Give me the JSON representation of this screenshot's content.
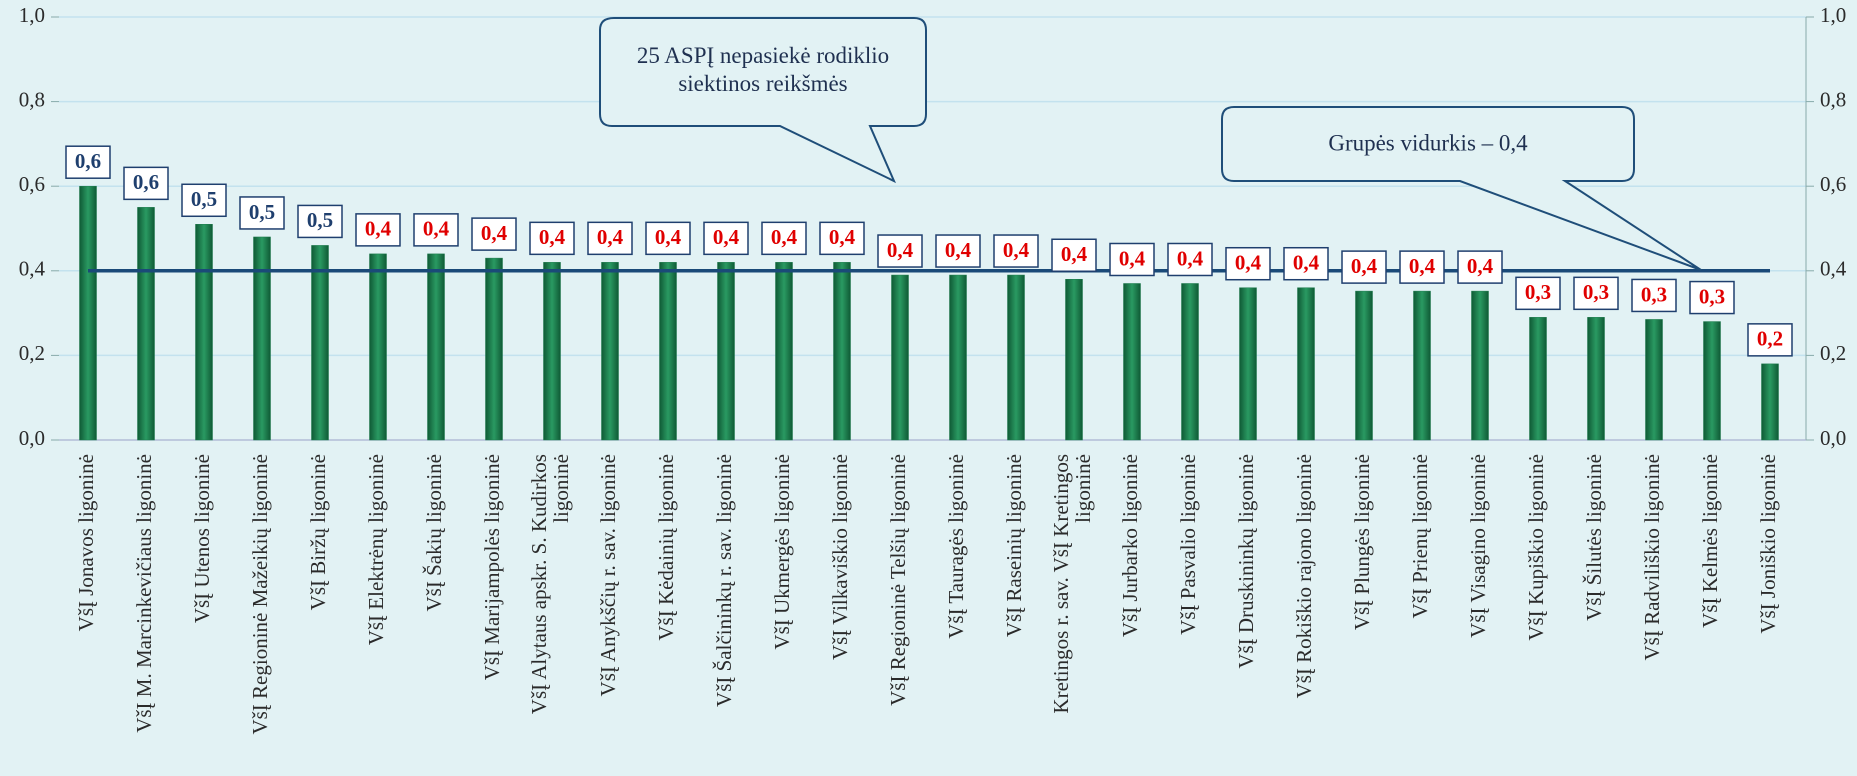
{
  "chart_data": {
    "type": "bar",
    "categories": [
      "VšĮ Jonavos ligoninė",
      "VšĮ M. Marcinkevičiaus ligoninė",
      "VšĮ Utenos ligoninė",
      "VšĮ Regioninė Mažeikių ligoninė",
      "VšĮ Biržų ligoninė",
      "VšĮ Elektrėnų ligoninė",
      "VšĮ Šakių ligoninė",
      "VšĮ Marijampolės ligoninė",
      "VšĮ Alytaus apskr. S. Kudirkos ligoninė",
      "VšĮ Anykščių r. sav. ligoninė",
      "VšĮ Kėdainių ligoninė",
      "VšĮ Šalčininkų r. sav. ligoninė",
      "VšĮ Ukmergės ligoninė",
      "VšĮ Vilkaviškio ligoninė",
      "VšĮ Regioninė Telšių ligoninė",
      "VšĮ Tauragės ligoninė",
      "VšĮ Raseinių ligoninė",
      "Kretingos r. sav. VšĮ Kretingos ligoninė",
      "VšĮ Jurbarko ligoninė",
      "VšĮ Pasvalio ligoninė",
      "VšĮ Druskininkų ligoninė",
      "VšĮ Rokiškio rajono ligoninė",
      "VšĮ Plungės ligoninė",
      "VšĮ Prienų ligoninė",
      "VšĮ Visagino ligoninė",
      "VšĮ Kupiškio ligoninė",
      "VšĮ Šilutės ligoninė",
      "VšĮ Radviliškio ligoninė",
      "VšĮ Kelmės ligoninė",
      "VšĮ Joniškio ligoninė"
    ],
    "values": [
      0.6,
      0.55,
      0.51,
      0.48,
      0.46,
      0.44,
      0.44,
      0.43,
      0.42,
      0.42,
      0.42,
      0.42,
      0.42,
      0.42,
      0.39,
      0.39,
      0.39,
      0.38,
      0.37,
      0.37,
      0.36,
      0.36,
      0.352,
      0.352,
      0.352,
      0.29,
      0.29,
      0.285,
      0.28,
      0.18
    ],
    "value_labels": [
      "0,6",
      "0,6",
      "0,5",
      "0,5",
      "0,5",
      "0,4",
      "0,4",
      "0,4",
      "0,4",
      "0,4",
      "0,4",
      "0,4",
      "0,4",
      "0,4",
      "0,4",
      "0,4",
      "0,4",
      "0,4",
      "0,4",
      "0,4",
      "0,4",
      "0,4",
      "0,4",
      "0,4",
      "0,4",
      "0,3",
      "0,3",
      "0,3",
      "0,3",
      "0,2"
    ],
    "value_label_colors": [
      "#1f3f6e",
      "#1f3f6e",
      "#1f3f6e",
      "#1f3f6e",
      "#1f3f6e",
      "#e00000",
      "#e00000",
      "#e00000",
      "#e00000",
      "#e00000",
      "#e00000",
      "#e00000",
      "#e00000",
      "#e00000",
      "#e00000",
      "#e00000",
      "#e00000",
      "#e00000",
      "#e00000",
      "#e00000",
      "#e00000",
      "#e00000",
      "#e00000",
      "#e00000",
      "#e00000",
      "#e00000",
      "#e00000",
      "#e00000",
      "#e00000",
      "#e00000"
    ],
    "color": "#1d7a4c",
    "ylim": [
      0,
      1
    ],
    "yticks": [
      {
        "value": 0,
        "label": "0,0"
      },
      {
        "value": 0.2,
        "label": "0,2"
      },
      {
        "value": 0.4,
        "label": "0,4"
      },
      {
        "value": 0.6,
        "label": "0,6"
      },
      {
        "value": 0.8,
        "label": "0,8"
      },
      {
        "value": 1,
        "label": "1,0"
      }
    ],
    "y2lim": [
      0,
      1
    ],
    "y2ticks": [
      {
        "value": 0,
        "label": "0,0"
      },
      {
        "value": 0.2,
        "label": "0,2"
      },
      {
        "value": 0.4,
        "label": "0,4"
      },
      {
        "value": 0.6,
        "label": "0,6"
      },
      {
        "value": 0.8,
        "label": "0,8"
      },
      {
        "value": 1,
        "label": "1,0"
      }
    ],
    "grid": true,
    "reference_line": {
      "value": 0.4,
      "label": "Grupės vidurkis – 0,4",
      "color": "#1a4a78"
    },
    "annotations": [
      "25 ASPĮ nepasiekė rodiklio siektinos reikšmės"
    ]
  }
}
